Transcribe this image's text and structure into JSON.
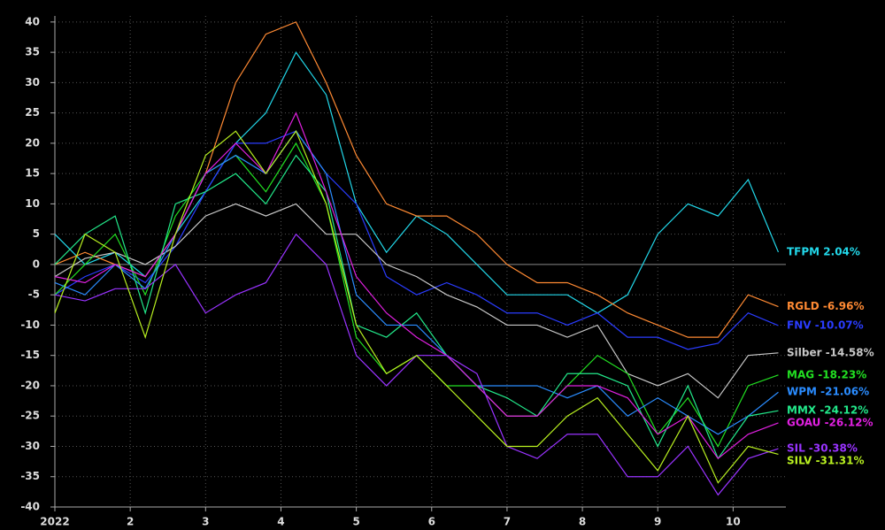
{
  "chart_data": {
    "type": "line",
    "x": [
      1.0,
      1.4,
      1.8,
      2.2,
      2.6,
      3.0,
      3.4,
      3.8,
      4.2,
      4.6,
      5.0,
      5.4,
      5.8,
      6.2,
      6.6,
      7.0,
      7.4,
      7.8,
      8.2,
      8.6,
      9.0,
      9.4,
      9.8,
      10.2,
      10.6
    ],
    "xlim": [
      1.0,
      10.7
    ],
    "xticks": [
      {
        "value": 1,
        "label": "2022"
      },
      2,
      3,
      4,
      5,
      6,
      7,
      8,
      9,
      10
    ],
    "ylim": [
      -40,
      41
    ],
    "yticks": [
      -40,
      -35,
      -30,
      -25,
      -20,
      -15,
      -10,
      -5,
      0,
      5,
      10,
      15,
      20,
      25,
      30,
      35,
      40
    ],
    "grid": true,
    "series": [
      {
        "name": "TFPM  2.04%",
        "color": "#22d8ea",
        "values": [
          5,
          0,
          2,
          -2,
          5,
          12,
          20,
          25,
          35,
          28,
          10,
          2,
          8,
          5,
          0,
          -5,
          -5,
          -5,
          -8,
          -5,
          5,
          10,
          8,
          14,
          2.04
        ]
      },
      {
        "name": "RGLD -6.96%",
        "color": "#ff8a33",
        "values": [
          0,
          2,
          0,
          -2,
          5,
          15,
          30,
          38,
          40,
          30,
          18,
          10,
          8,
          8,
          5,
          0,
          -3,
          -3,
          -5,
          -8,
          -10,
          -12,
          -12,
          -5,
          -6.96
        ]
      },
      {
        "name": "FNV -10.07%",
        "color": "#2a3cff",
        "values": [
          -5,
          -2,
          0,
          -3,
          3,
          12,
          20,
          20,
          22,
          15,
          10,
          -2,
          -5,
          -3,
          -5,
          -8,
          -8,
          -10,
          -8,
          -12,
          -12,
          -14,
          -13,
          -8,
          -10.07
        ]
      },
      {
        "name": "Silber -14.58%",
        "color": "#c8c8c8",
        "values": [
          -2,
          1,
          2,
          0,
          3,
          8,
          10,
          8,
          10,
          5,
          5,
          0,
          -2,
          -5,
          -7,
          -10,
          -10,
          -12,
          -10,
          -18,
          -20,
          -18,
          -22,
          -15,
          -14.58
        ]
      },
      {
        "name": "MAG -18.23%",
        "color": "#22e022",
        "values": [
          -5,
          0,
          5,
          -5,
          8,
          15,
          18,
          12,
          20,
          10,
          -12,
          -18,
          -15,
          -20,
          -20,
          -25,
          -25,
          -20,
          -15,
          -18,
          -28,
          -22,
          -30,
          -20,
          -18.23
        ]
      },
      {
        "name": "WPM -21.06%",
        "color": "#2a8cff",
        "values": [
          -3,
          -5,
          0,
          -4,
          5,
          15,
          18,
          15,
          22,
          15,
          -5,
          -10,
          -10,
          -15,
          -20,
          -20,
          -20,
          -22,
          -20,
          -25,
          -22,
          -25,
          -28,
          -25,
          -21.06
        ]
      },
      {
        "name": "MMX -24.12%",
        "color": "#22e88a",
        "values": [
          0,
          5,
          8,
          -8,
          10,
          12,
          15,
          10,
          18,
          12,
          -10,
          -12,
          -8,
          -15,
          -20,
          -22,
          -25,
          -18,
          -18,
          -20,
          -30,
          -20,
          -32,
          -25,
          -24.12
        ]
      },
      {
        "name": "GOAU -26.12%",
        "color": "#e020e0",
        "values": [
          -2,
          -3,
          0,
          -2,
          5,
          15,
          20,
          15,
          25,
          12,
          -2,
          -8,
          -12,
          -15,
          -20,
          -25,
          -25,
          -20,
          -20,
          -22,
          -28,
          -25,
          -32,
          -28,
          -26.12
        ]
      },
      {
        "name": "SIL -30.38%",
        "color": "#9933ff",
        "values": [
          -5,
          -6,
          -4,
          -4,
          0,
          -8,
          -5,
          -3,
          5,
          0,
          -15,
          -20,
          -15,
          -15,
          -18,
          -30,
          -32,
          -28,
          -28,
          -35,
          -35,
          -30,
          -38,
          -32,
          -30.38
        ]
      },
      {
        "name": "SILV -31.31%",
        "color": "#b8f020",
        "values": [
          -8,
          5,
          2,
          -12,
          5,
          18,
          22,
          15,
          22,
          10,
          -10,
          -18,
          -15,
          -20,
          -25,
          -30,
          -30,
          -25,
          -22,
          -28,
          -34,
          -25,
          -36,
          -30,
          -31.31
        ]
      }
    ]
  }
}
